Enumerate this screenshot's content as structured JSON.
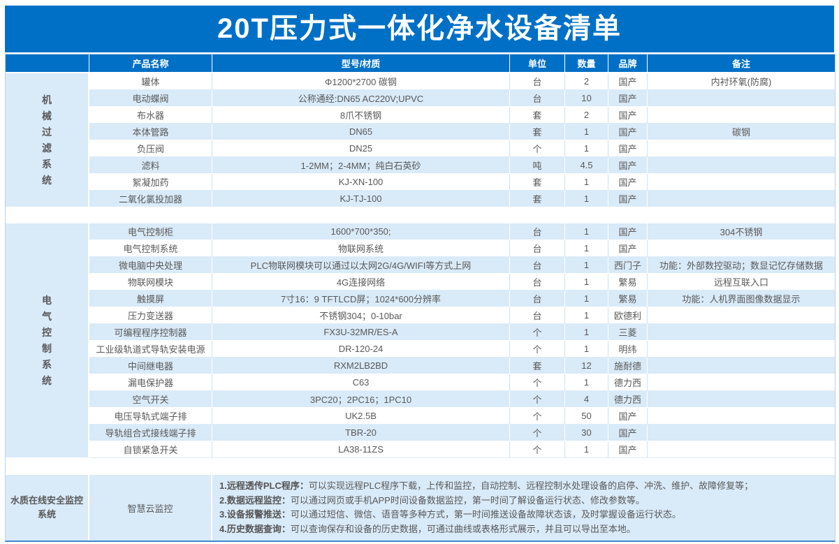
{
  "title": "20T压力式一体化净水设备清单",
  "columns": [
    "产品名称",
    "型号/材质",
    "单位",
    "数量",
    "品牌",
    "备注"
  ],
  "colors": {
    "header_blue": "#0070c6",
    "stripe_blue": "#d9eaf8",
    "text_gray": "#595959",
    "bottom_border_blue": "#3e86cf"
  },
  "sections": [
    {
      "group": "机械过滤系统",
      "rows": [
        [
          "罐体",
          "Φ1200*2700 碳钢",
          "台",
          "2",
          "国产",
          "内衬环氧(防腐)"
        ],
        [
          "电动蝶阀",
          "公称通经:DN65 AC220V;UPVC",
          "台",
          "10",
          "国产",
          ""
        ],
        [
          "布水器",
          "8爪不锈钢",
          "套",
          "2",
          "国产",
          ""
        ],
        [
          "本体管路",
          "DN65",
          "套",
          "1",
          "国产",
          "碳钢"
        ],
        [
          "负压阀",
          "DN25",
          "个",
          "1",
          "国产",
          ""
        ],
        [
          "滤料",
          "1-2MM；2-4MM；纯白石英砂",
          "吨",
          "4.5",
          "国产",
          ""
        ],
        [
          "絮凝加药",
          "KJ-XN-100",
          "套",
          "1",
          "国产",
          ""
        ],
        [
          "二氧化氯投加器",
          "KJ-TJ-100",
          "套",
          "1",
          "国产",
          ""
        ]
      ]
    },
    {
      "group": "电气控制系统",
      "rows": [
        [
          "电气控制柜",
          "1600*700*350;",
          "台",
          "1",
          "国产",
          "304不锈钢"
        ],
        [
          "电气控制系统",
          "物联网系统",
          "台",
          "1",
          "国产",
          ""
        ],
        [
          "微电脑中央处理",
          "PLC物联网模块可以通过以太网2G/4G/WIFI等方式上网",
          "台",
          "1",
          "西门子",
          "功能：外部数控驱动；数显记忆存储数据"
        ],
        [
          "物联网模块",
          "4G连接网络",
          "台",
          "1",
          "繁易",
          "远程互联入口"
        ],
        [
          "触摸屏",
          "7寸16：9 TFTLCD屏；1024*600分辨率",
          "台",
          "1",
          "繁易",
          "功能：人机界面图像数据显示"
        ],
        [
          "压力变送器",
          "不锈钢304；0-10bar",
          "台",
          "1",
          "欧德利",
          ""
        ],
        [
          "可编程程序控制器",
          "FX3U-32MR/ES-A",
          "个",
          "1",
          "三菱",
          ""
        ],
        [
          "工业级轨道式导轨安装电源",
          "DR-120-24",
          "个",
          "1",
          "明纬",
          ""
        ],
        [
          "中间继电器",
          "RXM2LB2BD",
          "套",
          "12",
          "施耐德",
          ""
        ],
        [
          "漏电保护器",
          "C63",
          "个",
          "1",
          "德力西",
          ""
        ],
        [
          "空气开关",
          "3PC20；2PC16；1PC10",
          "个",
          "4",
          "德力西",
          ""
        ],
        [
          "电压导轨式端子排",
          "UK2.5B",
          "个",
          "50",
          "国产",
          ""
        ],
        [
          "导轨组合式接线端子排",
          "TBR-20",
          "个",
          "30",
          "国产",
          ""
        ],
        [
          "自锁紧急开关",
          "LA38-11ZS",
          "个",
          "1",
          "国产",
          ""
        ]
      ]
    }
  ],
  "monitoring": {
    "group": "水质在线安全监控系统",
    "name": "智慧云监控",
    "features": [
      {
        "label": "1.远程透传PLC程序：",
        "text": "可以实现远程PLC程序下载，上传和监控，自动控制、远程控制水处理设备的启停、冲洗、维护、故障修复等；"
      },
      {
        "label": "2.数据远程监控：",
        "text": "可以通过网页或手机APP时间设备数据监控，第一时间了解设备运行状态、修改参数等。"
      },
      {
        "label": "3.设备报警推送：",
        "text": "可以通过短信、微信、语音等多种方式，第一时间推送设备故障状态该，及时掌握设备运行状态。"
      },
      {
        "label": "4.历史数据查询：",
        "text": "可以查询保存和设备的历史数据，可通过曲线或表格形式展示，并且可以导出至本地。"
      }
    ]
  }
}
